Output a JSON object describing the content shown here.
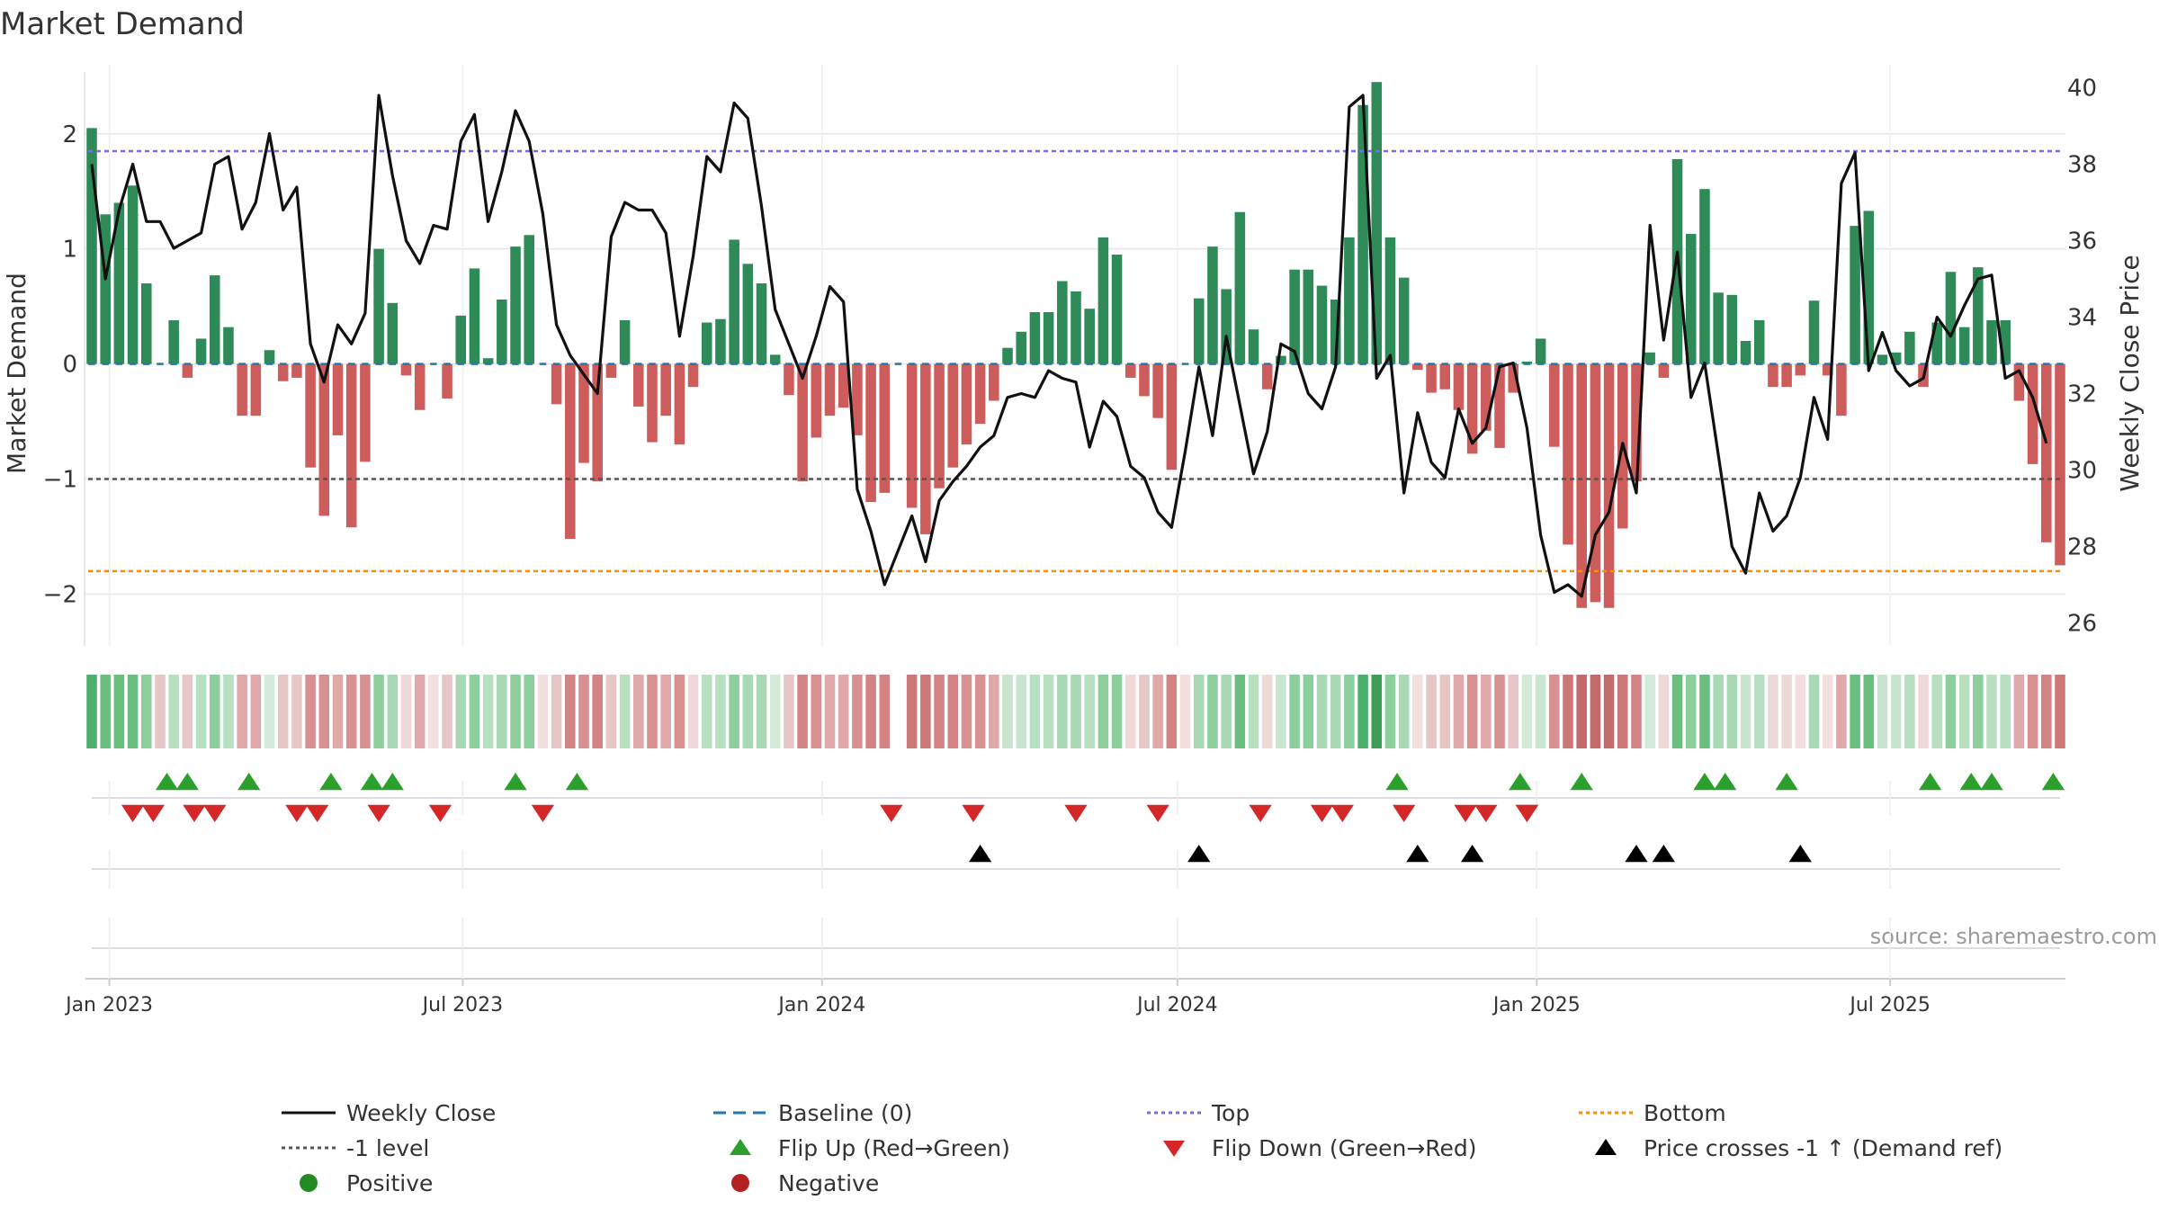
{
  "chart_data": {
    "type": "bar+line",
    "title": "Market Demand",
    "ylabel_left": "Market Demand",
    "ylabel_right": "Weekly Close Price",
    "source": "source: sharemaestro.com",
    "x_start": "2022-12-23",
    "x_step_days": 7,
    "ylim_left": [
      -2.45,
      2.6
    ],
    "ylim_right": [
      25.4,
      40.6
    ],
    "yticks_left": [
      {
        "value": 2,
        "label": "2"
      },
      {
        "value": 1,
        "label": "1"
      },
      {
        "value": 0,
        "label": "0"
      },
      {
        "value": -1,
        "label": "−1"
      },
      {
        "value": -2,
        "label": "−2"
      }
    ],
    "yticks_right": [
      {
        "value": 40,
        "label": "40"
      },
      {
        "value": 38,
        "label": "38"
      },
      {
        "value": 36,
        "label": "36"
      },
      {
        "value": 34,
        "label": "34"
      },
      {
        "value": 32,
        "label": "32"
      },
      {
        "value": 30,
        "label": "30"
      },
      {
        "value": 28,
        "label": "28"
      },
      {
        "value": 26,
        "label": "26"
      }
    ],
    "xticks": [
      {
        "date": "2023-01-01",
        "label": "Jan 2023"
      },
      {
        "date": "2023-07-01",
        "label": "Jul 2023"
      },
      {
        "date": "2024-01-01",
        "label": "Jan 2024"
      },
      {
        "date": "2024-07-01",
        "label": "Jul 2024"
      },
      {
        "date": "2025-01-01",
        "label": "Jan 2025"
      },
      {
        "date": "2025-07-01",
        "label": "Jul 2025"
      }
    ],
    "reference_lines": {
      "top": 1.85,
      "minus_one": -1,
      "bottom": -1.8,
      "baseline": 0
    },
    "demand": [
      2.05,
      1.3,
      1.4,
      1.55,
      0.7,
      0,
      0.38,
      -0.12,
      0.22,
      0.77,
      0.32,
      -0.45,
      -0.45,
      0.12,
      -0.15,
      -0.12,
      -0.9,
      -1.32,
      -0.62,
      -1.42,
      -0.85,
      1.0,
      0.53,
      -0.1,
      -0.4,
      0,
      -0.3,
      0.42,
      0.83,
      0.05,
      0.56,
      1.02,
      1.12,
      0,
      -0.35,
      -1.52,
      -0.86,
      -1.02,
      -0.12,
      0.38,
      -0.37,
      -0.68,
      -0.45,
      -0.7,
      -0.2,
      0.36,
      0.39,
      1.08,
      0.87,
      0.7,
      0.08,
      -0.27,
      -1.02,
      -0.64,
      -0.45,
      -0.38,
      -0.62,
      -1.2,
      -1.12,
      0,
      -1.25,
      -1.48,
      -1.08,
      -0.9,
      -0.7,
      -0.52,
      -0.32,
      0.14,
      0.28,
      0.45,
      0.45,
      0.72,
      0.63,
      0.48,
      1.1,
      0.95,
      -0.12,
      -0.28,
      -0.47,
      -0.92,
      0,
      0.57,
      1.02,
      0.65,
      1.32,
      0.3,
      -0.22,
      0.07,
      0.82,
      0.82,
      0.68,
      0.56,
      1.1,
      2.25,
      2.45,
      1.1,
      0.75,
      -0.05,
      -0.25,
      -0.22,
      -0.4,
      -0.78,
      -0.58,
      -0.73,
      -0.25,
      0.02,
      0.22,
      -0.72,
      -1.57,
      -2.12,
      -2.07,
      -2.12,
      -1.43,
      -1.02,
      0.1,
      -0.12,
      1.78,
      1.13,
      1.52,
      0.62,
      0.6,
      0.2,
      0.38,
      -0.2,
      -0.2,
      -0.1,
      0.55,
      -0.1,
      -0.45,
      1.2,
      1.33,
      0.08,
      0.1,
      0.28,
      -0.2,
      0.36,
      0.8,
      0.32,
      0.84,
      0.38,
      0.38,
      -0.32,
      -0.87,
      -1.55,
      -1.75
    ],
    "price": [
      38.0,
      35.0,
      36.8,
      38.0,
      36.5,
      36.5,
      35.8,
      36.0,
      36.2,
      38.0,
      38.2,
      36.3,
      37.0,
      38.8,
      36.8,
      37.4,
      33.3,
      32.3,
      33.8,
      33.3,
      34.1,
      39.8,
      37.7,
      36.0,
      35.4,
      36.4,
      36.3,
      38.6,
      39.3,
      36.5,
      37.8,
      39.4,
      38.6,
      36.7,
      33.8,
      33.0,
      32.5,
      32.0,
      36.1,
      37.0,
      36.8,
      36.8,
      36.2,
      33.5,
      35.6,
      38.2,
      37.8,
      39.6,
      39.2,
      36.9,
      34.2,
      33.3,
      32.4,
      33.5,
      34.8,
      34.4,
      29.5,
      28.4,
      27.0,
      27.9,
      28.8,
      27.6,
      29.2,
      29.7,
      30.1,
      30.6,
      30.9,
      31.9,
      32.0,
      31.9,
      32.6,
      32.4,
      32.3,
      30.6,
      31.8,
      31.4,
      30.1,
      29.8,
      28.9,
      28.5,
      30.5,
      32.7,
      30.9,
      33.5,
      31.7,
      29.9,
      31.0,
      33.3,
      33.1,
      32.0,
      31.6,
      32.7,
      39.5,
      39.8,
      32.4,
      33.0,
      29.4,
      31.5,
      30.2,
      29.8,
      31.6,
      30.7,
      31.1,
      32.7,
      32.8,
      31.1,
      28.3,
      26.8,
      27.0,
      26.7,
      28.3,
      28.9,
      30.7,
      29.4,
      36.4,
      33.4,
      35.7,
      31.9,
      32.8,
      30.4,
      28.0,
      27.3,
      29.4,
      28.4,
      28.8,
      29.8,
      31.9,
      30.8,
      37.5,
      38.3,
      32.6,
      33.6,
      32.6,
      32.2,
      32.4,
      34.0,
      33.5,
      34.3,
      35.0,
      35.1,
      32.4,
      32.6,
      31.9,
      30.7
    ],
    "band_colors": [
      "#4caf6c",
      "#6abf80",
      "#6abf80",
      "#6abf80",
      "#8ccf9d",
      "#e6c6c6",
      "#b7dfc0",
      "#e6c6c6",
      "#b7dfc0",
      "#8ccf9d",
      "#b7dfc0",
      "#e0a8a8",
      "#e0a8a8",
      "#d3ead8",
      "#e6c6c6",
      "#e6c6c6",
      "#d89090",
      "#d89090",
      "#e0a8a8",
      "#d89090",
      "#d89090",
      "#8ccf9d",
      "#a8d8b4",
      "#eed8d8",
      "#e0a8a8",
      "#f2e0e0",
      "#e6c6c6",
      "#a8d8b4",
      "#8ccf9d",
      "#b7dfc0",
      "#a8d8b4",
      "#8ccf9d",
      "#8ccf9d",
      "#f2e0e0",
      "#e6c6c6",
      "#d38383",
      "#d89090",
      "#d38383",
      "#e6c6c6",
      "#b7dfc0",
      "#e0a8a8",
      "#d89090",
      "#e0a8a8",
      "#d89090",
      "#eed8d8",
      "#b7dfc0",
      "#b7dfc0",
      "#8ccf9d",
      "#a8d8b4",
      "#a8d8b4",
      "#d3ead8",
      "#e6c6c6",
      "#d38383",
      "#d89090",
      "#e0a8a8",
      "#e0a8a8",
      "#d89090",
      "#d38383",
      "#d38383",
      "#ffffff",
      "#cc7878",
      "#cc7878",
      "#d38383",
      "#d38383",
      "#d89090",
      "#d89090",
      "#e0a8a8",
      "#c9e5cf",
      "#c9e5cf",
      "#b7dfc0",
      "#b7dfc0",
      "#a8d8b4",
      "#a8d8b4",
      "#b7dfc0",
      "#8ccf9d",
      "#8ccf9d",
      "#eed8d8",
      "#e6c6c6",
      "#e0a8a8",
      "#d38383",
      "#f2e0e0",
      "#a8d8b4",
      "#8ccf9d",
      "#a8d8b4",
      "#6abf80",
      "#b7dfc0",
      "#eed8d8",
      "#c9e5cf",
      "#8ccf9d",
      "#8ccf9d",
      "#a8d8b4",
      "#a8d8b4",
      "#8ccf9d",
      "#4caf6c",
      "#3e9e58",
      "#8ccf9d",
      "#a8d8b4",
      "#f2e0e0",
      "#e6c6c6",
      "#e6c6c6",
      "#e0a8a8",
      "#d89090",
      "#e0a8a8",
      "#d89090",
      "#e6c6c6",
      "#d3ead8",
      "#c9e5cf",
      "#d89090",
      "#cc7878",
      "#c46a6a",
      "#c46a6a",
      "#c46a6a",
      "#cc7878",
      "#d38383",
      "#d3ead8",
      "#eed8d8",
      "#6abf80",
      "#8ccf9d",
      "#6abf80",
      "#a8d8b4",
      "#a8d8b4",
      "#c9e5cf",
      "#b7dfc0",
      "#eed8d8",
      "#eed8d8",
      "#f2e0e0",
      "#a8d8b4",
      "#f2e0e0",
      "#e0a8a8",
      "#6abf80",
      "#6abf80",
      "#c9e5cf",
      "#c9e5cf",
      "#b7dfc0",
      "#eed8d8",
      "#b7dfc0",
      "#8ccf9d",
      "#b7dfc0",
      "#8ccf9d",
      "#b7dfc0",
      "#b7dfc0",
      "#e0a8a8",
      "#d89090",
      "#d38383",
      "#cc7878"
    ],
    "flip_up_weeks": [
      3,
      4,
      7,
      11,
      13,
      14,
      20,
      23,
      63,
      69,
      72,
      78,
      79,
      82,
      89,
      91,
      92,
      95
    ],
    "flip_down_weeks": [
      2,
      3,
      5,
      6,
      10,
      11,
      14,
      17,
      22,
      39,
      43,
      48,
      52,
      57,
      60,
      61,
      64,
      67,
      68,
      70,
      70
    ],
    "price_cross_weeks": [
      32,
      40,
      48,
      50,
      56,
      57,
      62
    ],
    "colors": {
      "positive_bar": "#2e8b57",
      "negative_bar": "#cd5c5c",
      "price_line": "#111111",
      "baseline": "#1f77b4",
      "top_line": "#7b68ee",
      "minus_one_line": "#555555",
      "bottom_line": "#ff8c00",
      "flip_up": "#2ca02c",
      "flip_down": "#d62728",
      "cross": "#000000",
      "positive_dot": "#228b22",
      "negative_dot": "#b22222",
      "grid": "#e6e6e6"
    },
    "legend": [
      {
        "label": "Weekly Close",
        "kind": "line-solid",
        "color": "#111111"
      },
      {
        "label": "Baseline (0)",
        "kind": "line-dash",
        "color": "#1f77b4"
      },
      {
        "label": "Top",
        "kind": "line-dot",
        "color": "#7b68ee"
      },
      {
        "label": "Bottom",
        "kind": "line-dot",
        "color": "#ff8c00"
      },
      {
        "label": "-1 level",
        "kind": "line-dot",
        "color": "#555555"
      },
      {
        "label": "Flip Up (Red→Green)",
        "kind": "tri-up",
        "color": "#2ca02c"
      },
      {
        "label": "Flip Down (Green→Red)",
        "kind": "tri-down",
        "color": "#d62728"
      },
      {
        "label": "Price crosses -1 ↑ (Demand ref)",
        "kind": "tri-up",
        "color": "#000000"
      },
      {
        "label": "Positive",
        "kind": "dot",
        "color": "#228b22"
      },
      {
        "label": "Negative",
        "kind": "dot",
        "color": "#b22222"
      }
    ]
  }
}
